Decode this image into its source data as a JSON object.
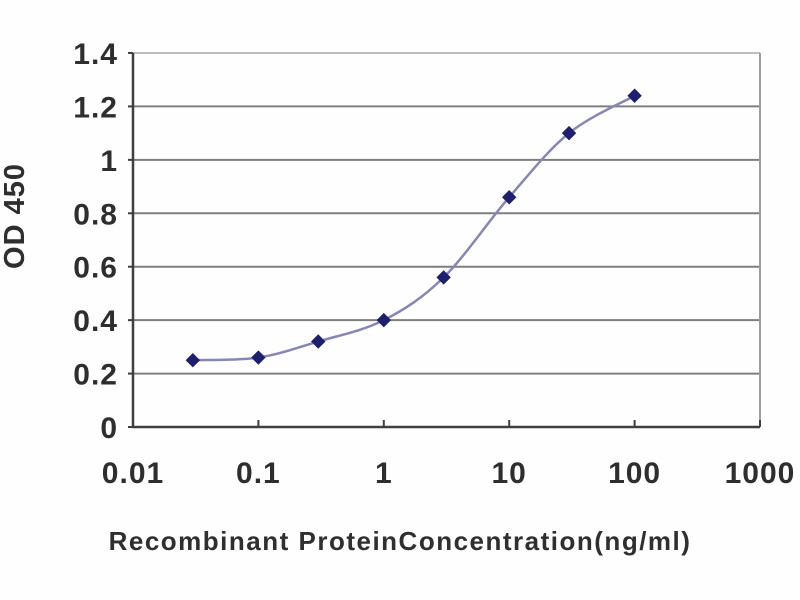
{
  "chart_data": {
    "type": "line",
    "xlabel": "Recombinant ProteinConcentration(ng/ml)",
    "ylabel": "OD 450",
    "x_scale": "log",
    "xlim": [
      0.01,
      1000
    ],
    "ylim": [
      0,
      1.4
    ],
    "grid": true,
    "legend": "none",
    "marker": "diamond",
    "x": [
      0.03,
      0.1,
      0.3,
      1,
      3,
      10,
      30,
      100
    ],
    "y": [
      0.25,
      0.26,
      0.32,
      0.4,
      0.56,
      0.86,
      1.1,
      1.24
    ],
    "x_tick_values": [
      0.01,
      0.1,
      1,
      10,
      100,
      1000
    ],
    "x_tick_labels": [
      "0.01",
      "0.1",
      "1",
      "10",
      "100",
      "1000"
    ],
    "y_tick_values": [
      0,
      0.2,
      0.4,
      0.6,
      0.8,
      1,
      1.2,
      1.4
    ],
    "y_tick_labels": [
      "0",
      "0.2",
      "0.4",
      "0.6",
      "0.8",
      "1",
      "1.2",
      "1.4"
    ],
    "colors": {
      "marker": "#1f1f6e",
      "line": "#8787b3",
      "grid": "#7e7e7e",
      "axis": "#3f3f3f",
      "plot_top_border": "#bdbdbd",
      "plot_right_border": "#9e9e9e",
      "text": "#2e2e2e",
      "background": "#fefefe"
    }
  }
}
